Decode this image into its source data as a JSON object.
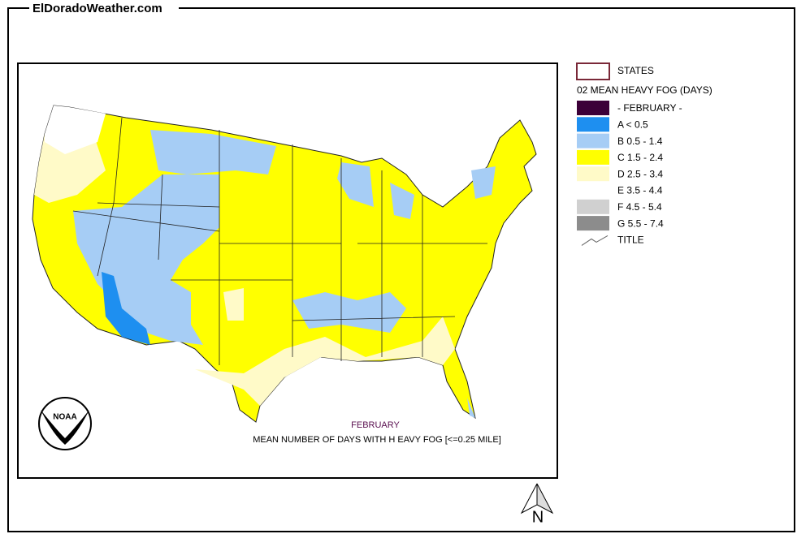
{
  "header": {
    "site": "ElDoradoWeather.com"
  },
  "legend": {
    "states": "STATES",
    "title": "02 MEAN HEAVY FOG (DAYS)",
    "items": [
      {
        "label": "- FEBRUARY -",
        "color": "#3c0038"
      },
      {
        "label": "A < 0.5",
        "color": "#1e8ff0"
      },
      {
        "label": "B 0.5 - 1.4",
        "color": "#a6cdf5"
      },
      {
        "label": "C 1.5 - 2.4",
        "color": "#ffff00"
      },
      {
        "label": "D 2.5 - 3.4",
        "color": "#fffac8"
      },
      {
        "label": "E 3.5 - 4.4",
        "color": "#ffffff"
      },
      {
        "label": "F 4.5 - 5.4",
        "color": "#d0d0d0"
      },
      {
        "label": "G 5.5 - 7.4",
        "color": "#8c8c8c"
      }
    ],
    "map_title": "TITLE"
  },
  "map": {
    "month": "FEBRUARY",
    "caption": "MEAN NUMBER OF DAYS WITH H EAVY FOG [<=0.25 MILE]",
    "logo": "NOAA",
    "compass": "N"
  }
}
